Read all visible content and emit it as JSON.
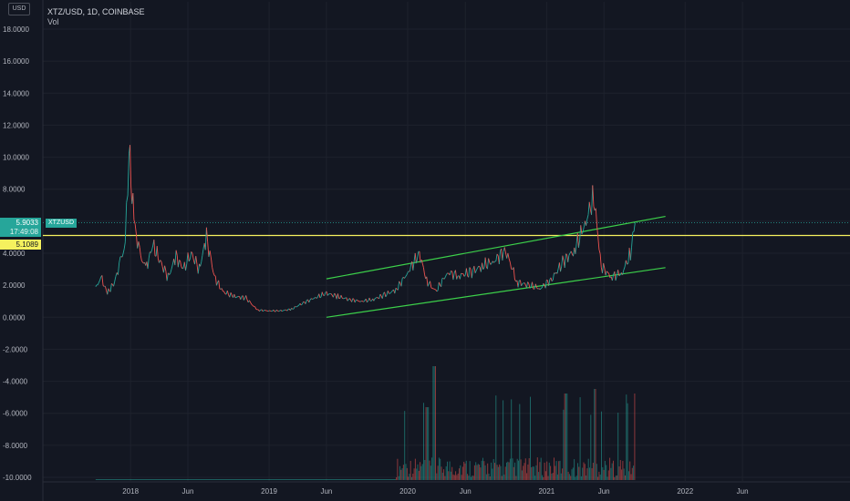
{
  "header": {
    "title": "XTZ/USD, 1D, COINBASE",
    "volume_label": "Vol",
    "currency_badge": "USD"
  },
  "price_axis": {
    "labels": [
      "18.0000",
      "16.0000",
      "14.0000",
      "12.0000",
      "10.0000",
      "8.0000",
      "6.0000",
      "4.0000",
      "2.0000",
      "0.0000",
      "-2.0000",
      "-4.0000",
      "-6.0000",
      "-8.0000",
      "-10.0000"
    ]
  },
  "time_axis": {
    "labels": [
      "2018",
      "Jun",
      "2019",
      "Jun",
      "2020",
      "Jun",
      "2021",
      "Jun",
      "2022",
      "Jun"
    ]
  },
  "markers": {
    "current_price": "5.9033",
    "countdown": "17:49:08",
    "symbol": "XTZUSD",
    "horizontal_line_price": "5.1089"
  },
  "colors": {
    "background": "#131722",
    "up": "#26a69a",
    "down": "#ef5350",
    "trendline": "#3cd04a",
    "hline": "#f5f15e"
  },
  "chart_data": {
    "type": "line",
    "title": "XTZ/USD, 1D, COINBASE",
    "xlabel": "",
    "ylabel": "",
    "ylim": [
      -10,
      18
    ],
    "grid": true,
    "series": [
      {
        "name": "XTZ/USD",
        "x": [
          "2017-10-01",
          "2017-10-15",
          "2017-11-01",
          "2017-11-20",
          "2017-12-05",
          "2017-12-18",
          "2017-12-28",
          "2018-01-10",
          "2018-01-25",
          "2018-02-10",
          "2018-03-01",
          "2018-03-20",
          "2018-04-10",
          "2018-05-01",
          "2018-05-20",
          "2018-06-10",
          "2018-07-01",
          "2018-07-20",
          "2018-08-10",
          "2018-09-01",
          "2018-10-01",
          "2018-11-01",
          "2018-12-01",
          "2019-01-01",
          "2019-02-01",
          "2019-03-01",
          "2019-04-01",
          "2019-05-01",
          "2019-06-01",
          "2019-07-01",
          "2019-08-01",
          "2019-09-01",
          "2019-10-01",
          "2019-11-01",
          "2019-12-01",
          "2020-01-01",
          "2020-02-01",
          "2020-02-20",
          "2020-03-15",
          "2020-04-15",
          "2020-05-15",
          "2020-06-15",
          "2020-07-15",
          "2020-08-15",
          "2020-09-15",
          "2020-10-15",
          "2020-11-15",
          "2020-12-15",
          "2021-01-15",
          "2021-02-15",
          "2021-03-15",
          "2021-04-15",
          "2021-05-05",
          "2021-05-25",
          "2021-06-20",
          "2021-07-20",
          "2021-08-10",
          "2021-08-22"
        ],
        "values": [
          1.8,
          2.5,
          1.5,
          2.2,
          3.5,
          4.5,
          10.5,
          6.0,
          4.0,
          3.0,
          4.5,
          3.5,
          2.5,
          3.8,
          3.0,
          4.0,
          3.0,
          5.0,
          2.5,
          1.6,
          1.3,
          1.2,
          0.45,
          0.4,
          0.4,
          0.5,
          0.9,
          1.2,
          1.5,
          1.3,
          1.1,
          1.0,
          1.1,
          1.4,
          1.7,
          2.8,
          4.0,
          2.3,
          1.6,
          2.8,
          2.6,
          2.8,
          3.2,
          3.5,
          4.2,
          2.2,
          2.0,
          1.8,
          2.4,
          3.5,
          4.2,
          6.0,
          7.6,
          3.2,
          2.5,
          2.8,
          4.0,
          5.9
        ]
      }
    ],
    "trendlines": [
      {
        "from": [
          "2019-06-01",
          2.4
        ],
        "to": [
          "2021-11-10",
          6.3
        ]
      },
      {
        "from": [
          "2019-06-01",
          0.0
        ],
        "to": [
          "2021-11-10",
          3.1
        ]
      }
    ],
    "horizontal_line": 5.1089
  }
}
